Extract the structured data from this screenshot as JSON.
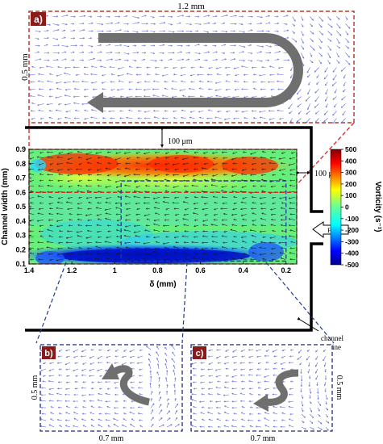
{
  "colors": {
    "inset_a_border": "#c0392b",
    "inset_bc_border": "#1f2a7a",
    "badge_fill": "#8b1a1a",
    "vector_color": "#5a63d8",
    "outline": "#000000",
    "curved_arrow": "#6f6f6f",
    "red_dash": "#d62728",
    "blue_dash": "#1f3a93"
  },
  "inset_a": {
    "badge": "a)",
    "width_label": "1.2 mm",
    "height_label": "0.5 mm",
    "icon": "u-turn-arrow-icon"
  },
  "inset_b": {
    "badge": "b)",
    "width_label": "0.7 mm",
    "height_label": "0.5 mm",
    "icon": "curved-arrow-up-icon"
  },
  "inset_c": {
    "badge": "c)",
    "width_label": "0.7 mm",
    "height_label": "0.5 mm",
    "icon": "curved-arrow-down-icon"
  },
  "channel": {
    "wall_gap_top": "100 μm",
    "wall_gap_right": "100 μm",
    "flow_label": "Flow",
    "outline_label_1": "channel",
    "outline_label_2": "outline"
  },
  "chart_data": {
    "type": "heatmap",
    "xlabel": "δ (mm)",
    "ylabel": "Channel width (mm)",
    "x_ticks": [
      1.4,
      1.2,
      1,
      0.8,
      0.6,
      0.4,
      0.2
    ],
    "x_tick_labels": [
      "1.4",
      "1.2",
      "1",
      "0.8",
      "0.6",
      "0.4",
      "0.2"
    ],
    "xlim": [
      1.4,
      0.15
    ],
    "x_reversed": true,
    "y_ticks": [
      0.1,
      0.2,
      0.3,
      0.4,
      0.5,
      0.6,
      0.7,
      0.8,
      0.9
    ],
    "y_tick_labels": [
      "0.1",
      "0.2",
      "0.3",
      "0.4",
      "0.5",
      "0.6",
      "0.7",
      "0.8",
      "0.9"
    ],
    "ylim": [
      0.1,
      0.9
    ],
    "colorbar": {
      "label": "Vorticity (s⁻¹)",
      "ticks": [
        500,
        400,
        300,
        200,
        100,
        0,
        -100,
        -200,
        -300,
        -400,
        -500
      ],
      "tick_labels": [
        "500",
        "400",
        "300",
        "200",
        "100",
        "0",
        "-100",
        "-200",
        "-300",
        "-400",
        "-500"
      ],
      "range": [
        -500,
        500
      ],
      "colormap": "jet"
    },
    "regions": [
      {
        "name": "red band",
        "y_range": [
          0.78,
          0.87
        ],
        "approx_vorticity": 400
      },
      {
        "name": "blue band",
        "y_range": [
          0.12,
          0.24
        ],
        "approx_vorticity": -450
      }
    ],
    "inset_boxes": [
      {
        "label": "a)",
        "x_range": [
          1.4,
          0.15
        ],
        "y_range": [
          0.6,
          0.9
        ],
        "color": "red"
      },
      {
        "label": "b)",
        "x_range": [
          1.4,
          0.15
        ],
        "y_range": [
          0.1,
          0.6
        ],
        "color": "red"
      },
      {
        "label": "c)",
        "x_range": [
          0.97,
          0.2
        ],
        "y_range": [
          0.12,
          0.68
        ],
        "color": "blue"
      }
    ]
  }
}
